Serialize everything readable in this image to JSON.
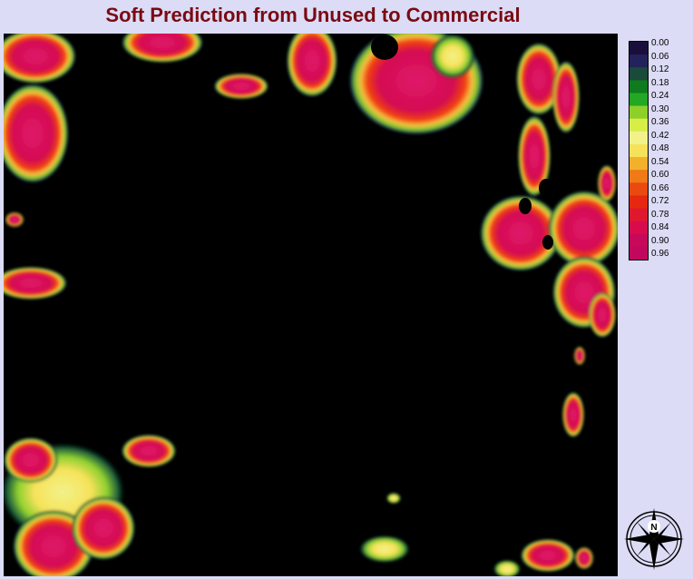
{
  "title": "Soft Prediction from Unused to Commercial",
  "legend": {
    "labels": [
      "0.00",
      "0.06",
      "0.12",
      "0.18",
      "0.24",
      "0.30",
      "0.36",
      "0.42",
      "0.48",
      "0.54",
      "0.60",
      "0.66",
      "0.72",
      "0.78",
      "0.84",
      "0.90",
      "0.96"
    ],
    "colors": [
      "#1a0f3c",
      "#23235c",
      "#1a4a3a",
      "#0f7a1e",
      "#22a822",
      "#8fcf2a",
      "#d8ee48",
      "#f2f28a",
      "#f6e25a",
      "#f3b02a",
      "#ef7a16",
      "#ea4a10",
      "#e62810",
      "#e0182e",
      "#d80c4c",
      "#c8085a",
      "#c0085e"
    ]
  },
  "north_arrow": {
    "label": "N"
  }
}
